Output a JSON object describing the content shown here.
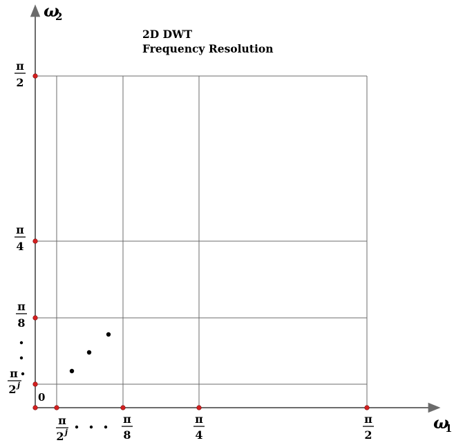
{
  "title_line1": "2D DWT",
  "title_line2": "Frequency Resolution",
  "x_axis_label": "ω",
  "x_axis_sub": "1",
  "y_axis_label": "ω",
  "y_axis_sub": "2",
  "origin_label": "0",
  "x_ticks": [
    {
      "num": "π",
      "den": "2",
      "sup": "j"
    },
    {
      "num": "π",
      "den": "8",
      "sup": ""
    },
    {
      "num": "π",
      "den": "4",
      "sup": ""
    },
    {
      "num": "π",
      "den": "2",
      "sup": ""
    }
  ],
  "y_ticks": [
    {
      "num": "π",
      "den": "2",
      "sup": "j"
    },
    {
      "num": "π",
      "den": "8",
      "sup": ""
    },
    {
      "num": "π",
      "den": "4",
      "sup": ""
    },
    {
      "num": "π",
      "den": "2",
      "sup": ""
    }
  ],
  "colors": {
    "grid": "#6b6b6b",
    "tick_marker": "#d42020",
    "text": "#000000"
  }
}
